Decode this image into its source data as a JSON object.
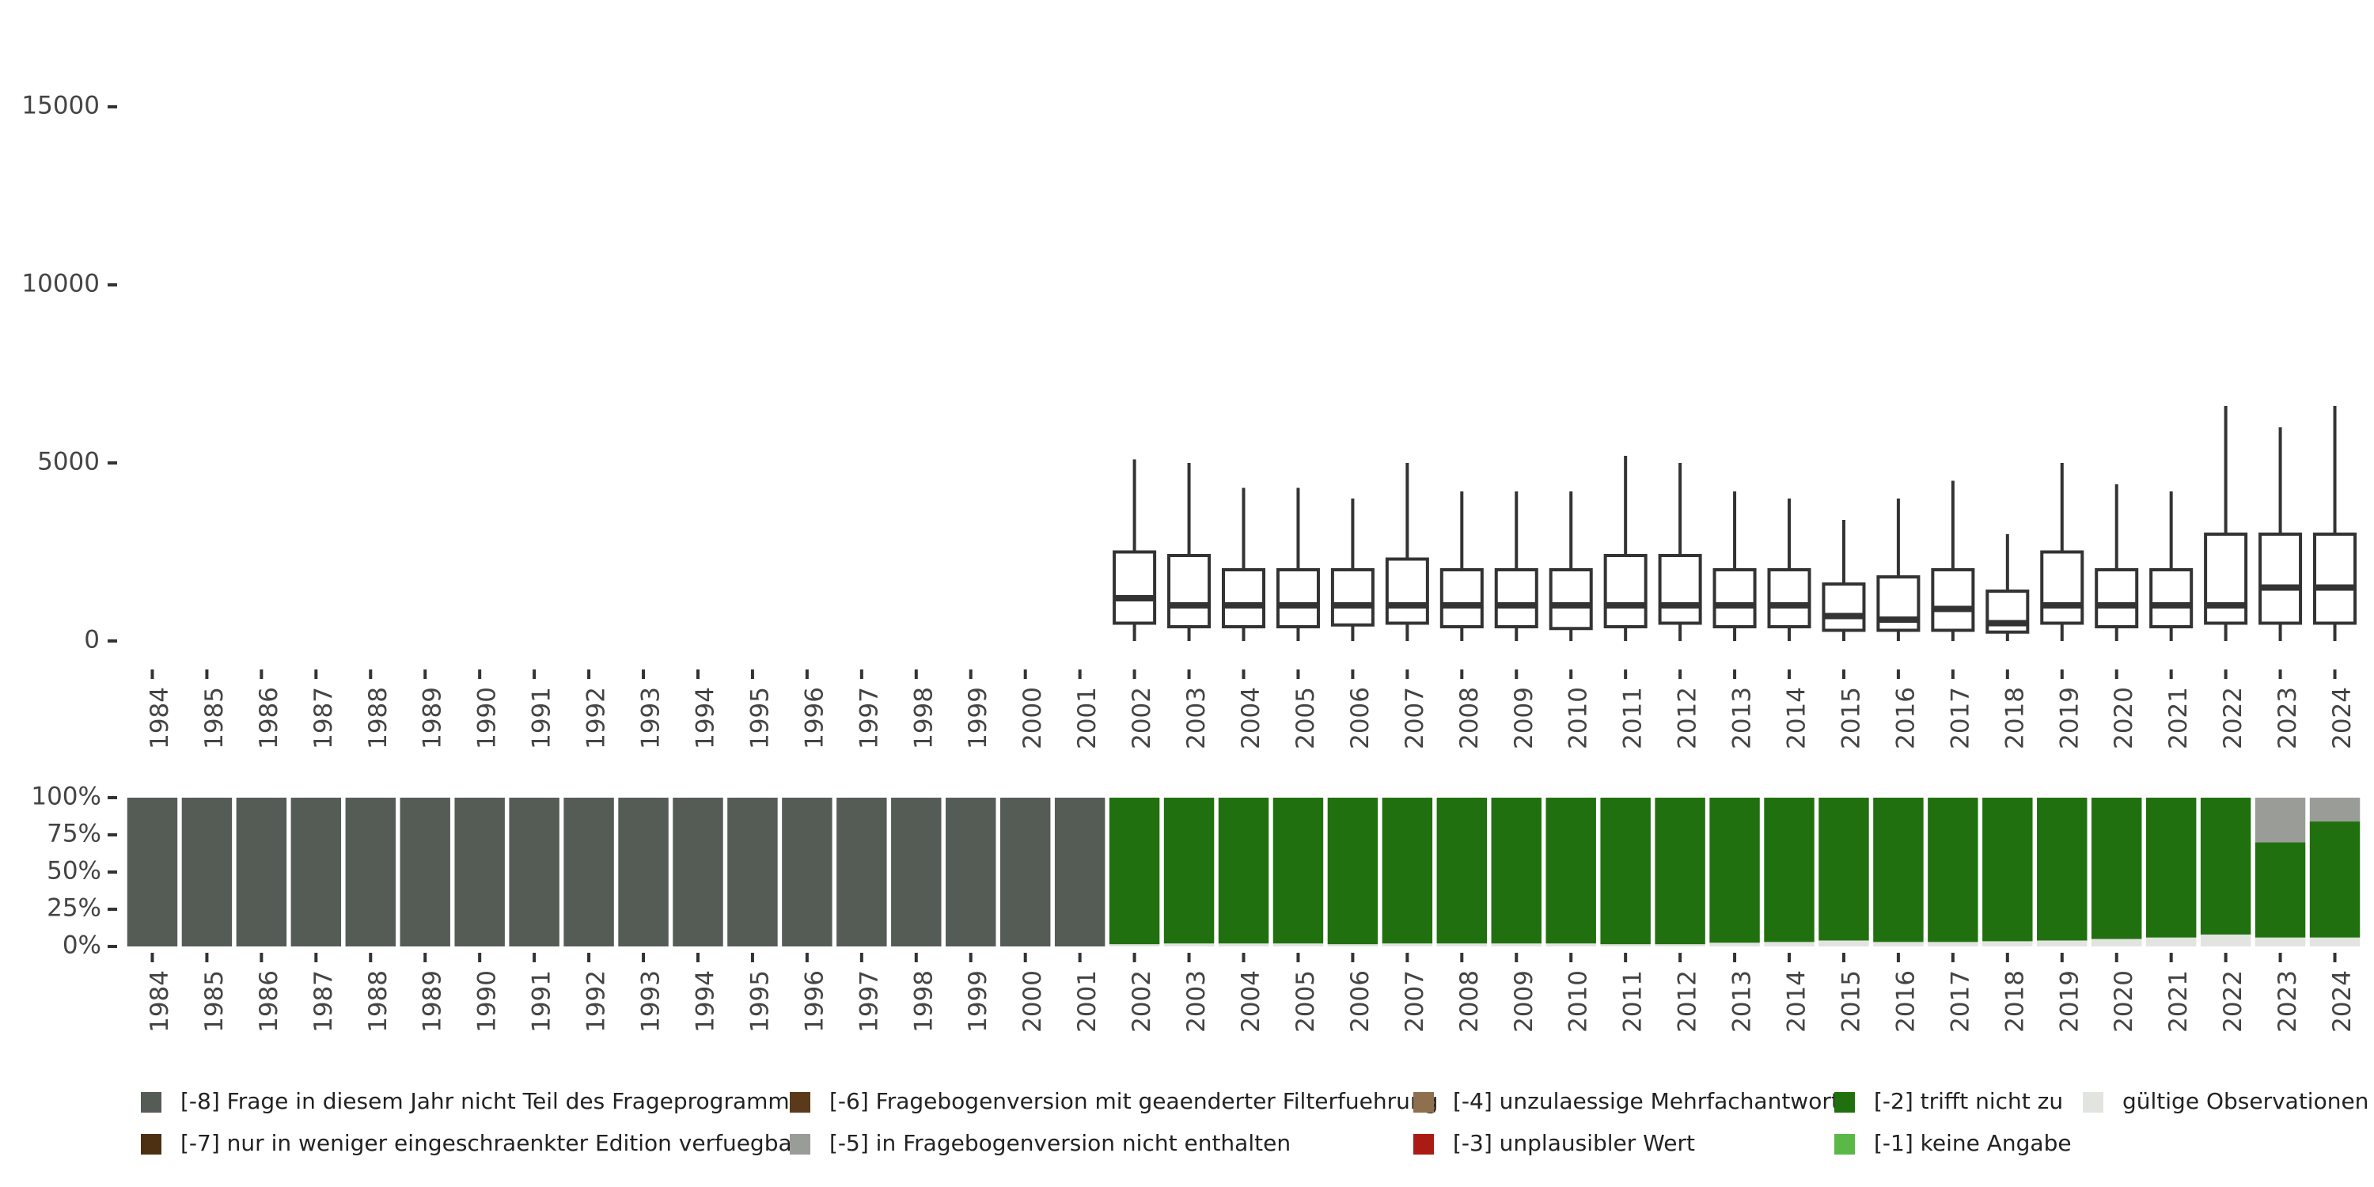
{
  "chart_data": [
    {
      "type": "box",
      "title": "",
      "xlabel": "",
      "ylabel": "",
      "ylim": [
        0,
        18000
      ],
      "yticks": [
        0,
        5000,
        10000,
        15000
      ],
      "ytick_labels": [
        "0",
        "5000",
        "10000",
        "15000"
      ],
      "categories": [
        "1984",
        "1985",
        "1986",
        "1987",
        "1988",
        "1989",
        "1990",
        "1991",
        "1992",
        "1993",
        "1994",
        "1995",
        "1996",
        "1997",
        "1998",
        "1999",
        "2000",
        "2001",
        "2002",
        "2003",
        "2004",
        "2005",
        "2006",
        "2007",
        "2008",
        "2009",
        "2010",
        "2011",
        "2012",
        "2013",
        "2014",
        "2015",
        "2016",
        "2017",
        "2018",
        "2019",
        "2020",
        "2021",
        "2022",
        "2023",
        "2024"
      ],
      "boxes": [
        {
          "year": "2002",
          "min": 0,
          "q1": 500,
          "median": 1200,
          "q3": 2500,
          "max": 5100
        },
        {
          "year": "2003",
          "min": 0,
          "q1": 400,
          "median": 1000,
          "q3": 2400,
          "max": 5000
        },
        {
          "year": "2004",
          "min": 0,
          "q1": 400,
          "median": 1000,
          "q3": 2000,
          "max": 4300
        },
        {
          "year": "2005",
          "min": 0,
          "q1": 400,
          "median": 1000,
          "q3": 2000,
          "max": 4300
        },
        {
          "year": "2006",
          "min": 0,
          "q1": 450,
          "median": 1000,
          "q3": 2000,
          "max": 4000
        },
        {
          "year": "2007",
          "min": 0,
          "q1": 500,
          "median": 1000,
          "q3": 2300,
          "max": 5000
        },
        {
          "year": "2008",
          "min": 0,
          "q1": 400,
          "median": 1000,
          "q3": 2000,
          "max": 4200
        },
        {
          "year": "2009",
          "min": 0,
          "q1": 400,
          "median": 1000,
          "q3": 2000,
          "max": 4200
        },
        {
          "year": "2010",
          "min": 0,
          "q1": 350,
          "median": 1000,
          "q3": 2000,
          "max": 4200
        },
        {
          "year": "2011",
          "min": 0,
          "q1": 400,
          "median": 1000,
          "q3": 2400,
          "max": 5200
        },
        {
          "year": "2012",
          "min": 0,
          "q1": 500,
          "median": 1000,
          "q3": 2400,
          "max": 5000
        },
        {
          "year": "2013",
          "min": 0,
          "q1": 400,
          "median": 1000,
          "q3": 2000,
          "max": 4200
        },
        {
          "year": "2014",
          "min": 0,
          "q1": 400,
          "median": 1000,
          "q3": 2000,
          "max": 4000
        },
        {
          "year": "2015",
          "min": 0,
          "q1": 300,
          "median": 700,
          "q3": 1600,
          "max": 3400
        },
        {
          "year": "2016",
          "min": 0,
          "q1": 300,
          "median": 600,
          "q3": 1800,
          "max": 4000
        },
        {
          "year": "2017",
          "min": 0,
          "q1": 300,
          "median": 900,
          "q3": 2000,
          "max": 4500
        },
        {
          "year": "2018",
          "min": 0,
          "q1": 250,
          "median": 500,
          "q3": 1400,
          "max": 3000
        },
        {
          "year": "2019",
          "min": 0,
          "q1": 500,
          "median": 1000,
          "q3": 2500,
          "max": 5000
        },
        {
          "year": "2020",
          "min": 0,
          "q1": 400,
          "median": 1000,
          "q3": 2000,
          "max": 4400
        },
        {
          "year": "2021",
          "min": 0,
          "q1": 400,
          "median": 1000,
          "q3": 2000,
          "max": 4200
        },
        {
          "year": "2022",
          "min": 0,
          "q1": 500,
          "median": 1000,
          "q3": 3000,
          "max": 6600
        },
        {
          "year": "2023",
          "min": 0,
          "q1": 500,
          "median": 1500,
          "q3": 3000,
          "max": 6000
        },
        {
          "year": "2024",
          "min": 0,
          "q1": 500,
          "median": 1500,
          "q3": 3000,
          "max": 6600
        }
      ]
    },
    {
      "type": "bar",
      "stacked": "percent",
      "ylim": [
        0,
        100
      ],
      "yticks": [
        0,
        25,
        50,
        75,
        100
      ],
      "ytick_labels": [
        "0%",
        "25%",
        "50%",
        "75%",
        "100%"
      ],
      "categories": [
        "1984",
        "1985",
        "1986",
        "1987",
        "1988",
        "1989",
        "1990",
        "1991",
        "1992",
        "1993",
        "1994",
        "1995",
        "1996",
        "1997",
        "1998",
        "1999",
        "2000",
        "2001",
        "2002",
        "2003",
        "2004",
        "2005",
        "2006",
        "2007",
        "2008",
        "2009",
        "2010",
        "2011",
        "2012",
        "2013",
        "2014",
        "2015",
        "2016",
        "2017",
        "2018",
        "2019",
        "2020",
        "2021",
        "2022",
        "2023",
        "2024"
      ],
      "series": [
        {
          "name": "gültige Observationen",
          "color": "#e2e4e0",
          "values": [
            0,
            0,
            0,
            0,
            0,
            0,
            0,
            0,
            0,
            0,
            0,
            0,
            0,
            0,
            0,
            0,
            0,
            0,
            1.5,
            2,
            2,
            2,
            1.5,
            2,
            2,
            2,
            2,
            1.5,
            1.5,
            2.5,
            3,
            4,
            3,
            3,
            3.5,
            4,
            5,
            6,
            8,
            6,
            6
          ]
        },
        {
          "name": "[-2] trifft nicht zu",
          "color": "#21700f",
          "values": [
            0,
            0,
            0,
            0,
            0,
            0,
            0,
            0,
            0,
            0,
            0,
            0,
            0,
            0,
            0,
            0,
            0,
            0,
            98.5,
            98,
            98,
            98,
            98.5,
            98,
            98,
            98,
            98,
            98.5,
            98.5,
            97.5,
            97,
            96,
            97,
            97,
            96.5,
            96,
            95,
            94,
            92,
            64,
            78
          ]
        },
        {
          "name": "[-5] in Fragebogenversion nicht enthalten",
          "color": "#9a9c98",
          "values": [
            0,
            0,
            0,
            0,
            0,
            0,
            0,
            0,
            0,
            0,
            0,
            0,
            0,
            0,
            0,
            0,
            0,
            0,
            0,
            0,
            0,
            0,
            0,
            0,
            0,
            0,
            0,
            0,
            0,
            0,
            0,
            0,
            0,
            0,
            0,
            0,
            0,
            0,
            0,
            30,
            16
          ]
        },
        {
          "name": "[-8] Frage in diesem Jahr nicht Teil des Frageprogramms",
          "color": "#555b55",
          "values": [
            100,
            100,
            100,
            100,
            100,
            100,
            100,
            100,
            100,
            100,
            100,
            100,
            100,
            100,
            100,
            100,
            100,
            100,
            0,
            0,
            0,
            0,
            0,
            0,
            0,
            0,
            0,
            0,
            0,
            0,
            0,
            0,
            0,
            0,
            0,
            0,
            0,
            0,
            0,
            0,
            0
          ]
        }
      ]
    }
  ],
  "legend": [
    {
      "label": "[-8] Frage in diesem Jahr nicht Teil des Frageprogramms",
      "color": "#555b55"
    },
    {
      "label": "[-7] nur in weniger eingeschraenkter Edition verfuegbar",
      "color": "#4d2f12"
    },
    {
      "label": "[-6] Fragebogenversion mit geaenderter Filterfuehrung",
      "color": "#5a3a1a"
    },
    {
      "label": "[-5] in Fragebogenversion nicht enthalten",
      "color": "#9a9c98"
    },
    {
      "label": "[-4] unzulaessige Mehrfachantwort",
      "color": "#8e6f4e"
    },
    {
      "label": "[-3] unplausibler Wert",
      "color": "#aa1b14"
    },
    {
      "label": "[-2] trifft nicht zu",
      "color": "#21700f"
    },
    {
      "label": "[-1] keine Angabe",
      "color": "#5ab846"
    },
    {
      "label": "gültige Observationen",
      "color": "#e2e4e0"
    }
  ]
}
